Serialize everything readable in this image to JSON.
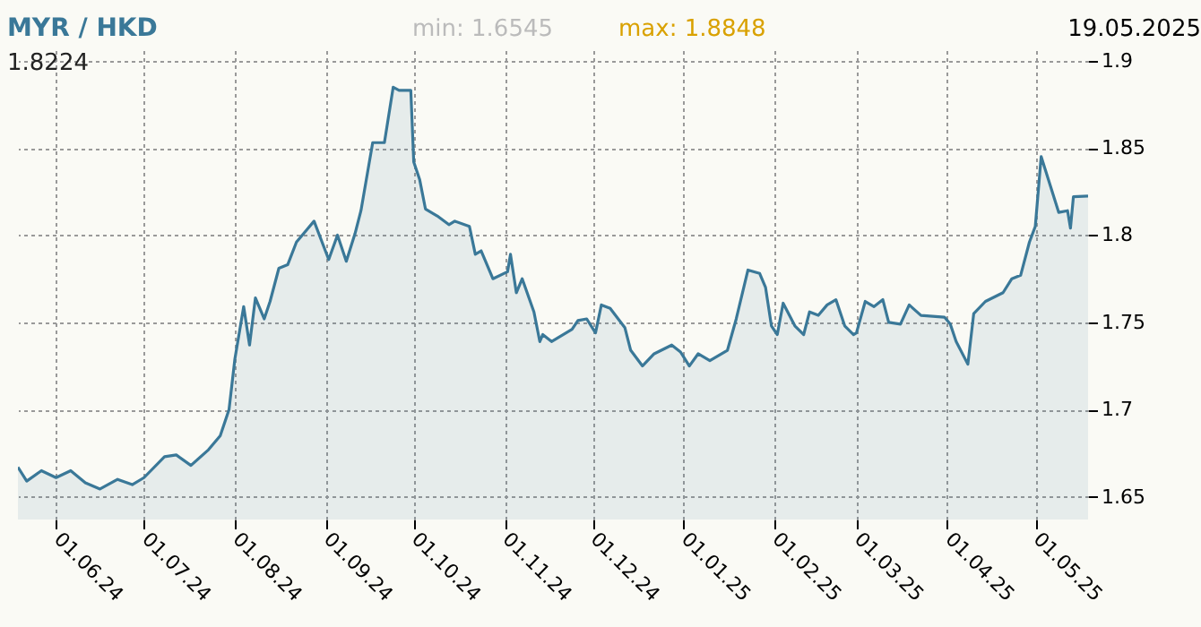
{
  "chart_data": {
    "type": "area",
    "title": "MYR / HKD",
    "annotations": [
      "min: 1.6545",
      "max: 1.8848",
      "19.05.2025",
      "1.8224"
    ],
    "x": [
      "2024-05-19",
      "2024-05-22",
      "2024-05-27",
      "2024-06-01",
      "2024-06-06",
      "2024-06-11",
      "2024-06-16",
      "2024-06-22",
      "2024-06-27",
      "2024-07-01",
      "2024-07-08",
      "2024-07-12",
      "2024-07-17",
      "2024-07-23",
      "2024-07-27",
      "2024-07-30",
      "2024-08-01",
      "2024-08-02",
      "2024-08-04",
      "2024-08-06",
      "2024-08-08",
      "2024-08-11",
      "2024-08-13",
      "2024-08-16",
      "2024-08-19",
      "2024-08-22",
      "2024-08-28",
      "2024-09-02",
      "2024-09-05",
      "2024-09-08",
      "2024-09-11",
      "2024-09-13",
      "2024-09-17",
      "2024-09-21",
      "2024-09-24",
      "2024-09-26",
      "2024-09-30",
      "2024-10-01",
      "2024-10-03",
      "2024-10-05",
      "2024-10-09",
      "2024-10-13",
      "2024-10-15",
      "2024-10-20",
      "2024-10-22",
      "2024-10-24",
      "2024-10-28",
      "2024-11-02",
      "2024-11-03",
      "2024-11-05",
      "2024-11-07",
      "2024-11-11",
      "2024-11-13",
      "2024-11-14",
      "2024-11-17",
      "2024-11-24",
      "2024-11-26",
      "2024-11-29",
      "2024-12-02",
      "2024-12-04",
      "2024-12-07",
      "2024-12-12",
      "2024-12-14",
      "2024-12-18",
      "2024-12-22",
      "2024-12-28",
      "2024-12-31",
      "2025-01-03",
      "2025-01-06",
      "2025-01-10",
      "2025-01-16",
      "2025-01-19",
      "2025-01-23",
      "2025-01-27",
      "2025-01-29",
      "2025-01-31",
      "2025-02-02",
      "2025-02-04",
      "2025-02-08",
      "2025-02-11",
      "2025-02-13",
      "2025-02-16",
      "2025-02-19",
      "2025-02-22",
      "2025-02-25",
      "2025-02-28",
      "2025-03-01",
      "2025-03-04",
      "2025-03-07",
      "2025-03-10",
      "2025-03-12",
      "2025-03-16",
      "2025-03-19",
      "2025-03-23",
      "2025-03-31",
      "2025-04-02",
      "2025-04-04",
      "2025-04-08",
      "2025-04-10",
      "2025-04-14",
      "2025-04-20",
      "2025-04-23",
      "2025-04-26",
      "2025-04-29",
      "2025-05-01",
      "2025-05-03",
      "2025-05-06",
      "2025-05-09",
      "2025-05-12",
      "2025-05-13",
      "2025-05-14",
      "2025-05-19"
    ],
    "series": [
      {
        "color": "#3a7898",
        "values": [
          1.667,
          1.659,
          1.665,
          1.661,
          1.665,
          1.658,
          1.6545,
          1.66,
          1.657,
          1.661,
          1.673,
          1.674,
          1.668,
          1.677,
          1.685,
          1.7,
          1.729,
          1.739,
          1.759,
          1.737,
          1.764,
          1.752,
          1.762,
          1.781,
          1.783,
          1.796,
          1.808,
          1.786,
          1.8,
          1.785,
          1.801,
          1.814,
          1.853,
          1.853,
          1.8848,
          1.883,
          1.883,
          1.842,
          1.832,
          1.815,
          1.811,
          1.806,
          1.808,
          1.805,
          1.789,
          1.791,
          1.775,
          1.779,
          1.789,
          1.767,
          1.775,
          1.756,
          1.739,
          1.743,
          1.739,
          1.746,
          1.751,
          1.752,
          1.744,
          1.76,
          1.758,
          1.747,
          1.734,
          1.725,
          1.732,
          1.737,
          1.733,
          1.725,
          1.732,
          1.728,
          1.734,
          1.752,
          1.78,
          1.778,
          1.77,
          1.748,
          1.743,
          1.761,
          1.748,
          1.743,
          1.756,
          1.754,
          1.76,
          1.763,
          1.748,
          1.743,
          1.744,
          1.762,
          1.759,
          1.763,
          1.75,
          1.749,
          1.76,
          1.754,
          1.753,
          1.749,
          1.739,
          1.726,
          1.755,
          1.762,
          1.767,
          1.775,
          1.777,
          1.796,
          1.805,
          1.845,
          1.829,
          1.813,
          1.814,
          1.804,
          1.822,
          1.8224
        ]
      }
    ],
    "xlim": [
      "2024-05-19",
      "2025-05-19"
    ],
    "xticks": [
      {
        "value": "2024-06-01",
        "label": "01.06.24"
      },
      {
        "value": "2024-07-01",
        "label": "01.07.24"
      },
      {
        "value": "2024-08-01",
        "label": "01.08.24"
      },
      {
        "value": "2024-09-01",
        "label": "01.09.24"
      },
      {
        "value": "2024-10-01",
        "label": "01.10.24"
      },
      {
        "value": "2024-11-01",
        "label": "01.11.24"
      },
      {
        "value": "2024-12-01",
        "label": "01.12.24"
      },
      {
        "value": "2025-01-01",
        "label": "01.01.25"
      },
      {
        "value": "2025-02-01",
        "label": "01.02.25"
      },
      {
        "value": "2025-03-01",
        "label": "01.03.25"
      },
      {
        "value": "2025-04-01",
        "label": "01.04.25"
      },
      {
        "value": "2025-05-01",
        "label": "01.05.25"
      }
    ],
    "ylim": [
      1.637,
      1.906
    ],
    "yticks": [
      1.65,
      1.7,
      1.75,
      1.8,
      1.85,
      1.9
    ],
    "grid": true,
    "line_style": "solid"
  }
}
